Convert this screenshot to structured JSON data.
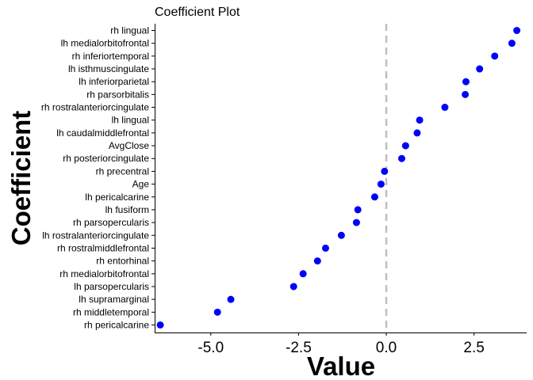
{
  "chart_data": {
    "type": "scatter",
    "title": "Coefficient Plot",
    "xlabel": "Value",
    "ylabel": "Coefficient",
    "xlim": [
      -6.6,
      4.0
    ],
    "xticks": [
      -5.0,
      -2.5,
      0.0,
      2.5
    ],
    "xtick_labels": [
      "-5.0",
      "-2.5",
      "0.0",
      "2.5"
    ],
    "reference_line": {
      "x": 0,
      "style": "dashed",
      "color": "#bebebe"
    },
    "point_color": "#0000ff",
    "grid": false,
    "categories": [
      "rh lingual",
      "lh medialorbitofrontal",
      "rh inferiortemporal",
      "lh isthmuscingulate",
      "lh inferiorparietal",
      "rh parsorbitalis",
      "rh rostralanteriorcingulate",
      "lh lingual",
      "lh caudalmiddlefrontal",
      "AvgClose",
      "rh posteriorcingulate",
      "rh precentral",
      "Age",
      "lh pericalcarine",
      "lh fusiform",
      "rh parsopercularis",
      "lh rostralanteriorcingulate",
      "rh rostralmiddlefrontal",
      "rh entorhinal",
      "rh medialorbitofrontal",
      "lh parsopercularis",
      "lh supramarginal",
      "rh middletemporal",
      "rh pericalcarine"
    ],
    "values": [
      3.72,
      3.58,
      3.09,
      2.66,
      2.27,
      2.25,
      1.67,
      0.95,
      0.88,
      0.55,
      0.44,
      -0.05,
      -0.15,
      -0.33,
      -0.81,
      -0.85,
      -1.28,
      -1.73,
      -1.96,
      -2.37,
      -2.64,
      -4.43,
      -4.81,
      -6.44
    ]
  }
}
